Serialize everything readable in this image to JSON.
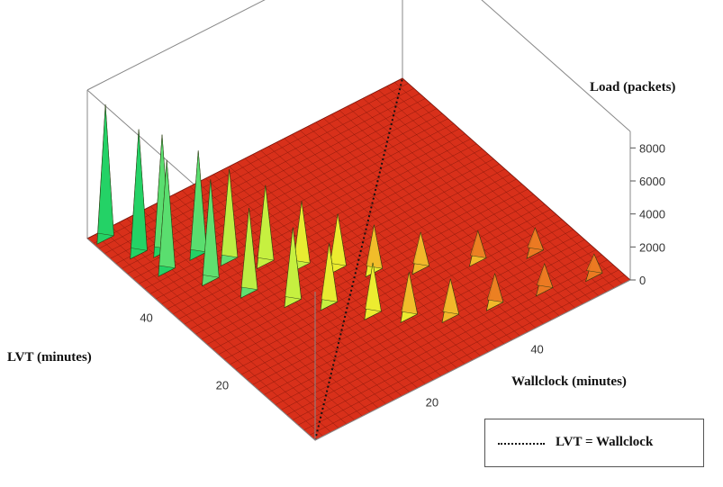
{
  "chart_data": {
    "type": "surface3d",
    "title": "",
    "zlabel": "Load (packets)",
    "xlabel": "Wallclock (minutes)",
    "ylabel": "LVT  (minutes)",
    "z_ticks": [
      0,
      2000,
      4000,
      6000,
      8000
    ],
    "x_ticks": [
      20,
      40
    ],
    "y_ticks": [
      20,
      40
    ],
    "xlim": [
      0,
      60
    ],
    "ylim": [
      0,
      60
    ],
    "zlim": [
      0,
      9000
    ],
    "colormap": [
      "#d42a10",
      "#ef7a1a",
      "#e8e830",
      "#4fe06a",
      "#10c860"
    ],
    "peaks": [
      {
        "wallclock": 2,
        "lvt": 58,
        "load": 8200
      },
      {
        "wallclock": 4,
        "lvt": 52,
        "load": 7600
      },
      {
        "wallclock": 5,
        "lvt": 46,
        "load": 6800
      },
      {
        "wallclock": 7,
        "lvt": 50,
        "load": 7200
      },
      {
        "wallclock": 9,
        "lvt": 40,
        "load": 6200
      },
      {
        "wallclock": 11,
        "lvt": 46,
        "load": 6400
      },
      {
        "wallclock": 12,
        "lvt": 34,
        "load": 5200
      },
      {
        "wallclock": 14,
        "lvt": 42,
        "load": 5600
      },
      {
        "wallclock": 16,
        "lvt": 28,
        "load": 4600
      },
      {
        "wallclock": 18,
        "lvt": 38,
        "load": 4800
      },
      {
        "wallclock": 20,
        "lvt": 24,
        "load": 3800
      },
      {
        "wallclock": 22,
        "lvt": 34,
        "load": 4000
      },
      {
        "wallclock": 24,
        "lvt": 18,
        "load": 3200
      },
      {
        "wallclock": 26,
        "lvt": 30,
        "load": 3400
      },
      {
        "wallclock": 28,
        "lvt": 14,
        "load": 2800
      },
      {
        "wallclock": 30,
        "lvt": 26,
        "load": 2900
      },
      {
        "wallclock": 33,
        "lvt": 10,
        "load": 2400
      },
      {
        "wallclock": 36,
        "lvt": 22,
        "load": 2300
      },
      {
        "wallclock": 40,
        "lvt": 8,
        "load": 2000
      },
      {
        "wallclock": 44,
        "lvt": 18,
        "load": 1900
      },
      {
        "wallclock": 48,
        "lvt": 6,
        "load": 1700
      },
      {
        "wallclock": 52,
        "lvt": 14,
        "load": 1600
      },
      {
        "wallclock": 56,
        "lvt": 4,
        "load": 1400
      }
    ],
    "reference_line": {
      "name": "LVT = Wallclock",
      "style": "dotted"
    }
  }
}
